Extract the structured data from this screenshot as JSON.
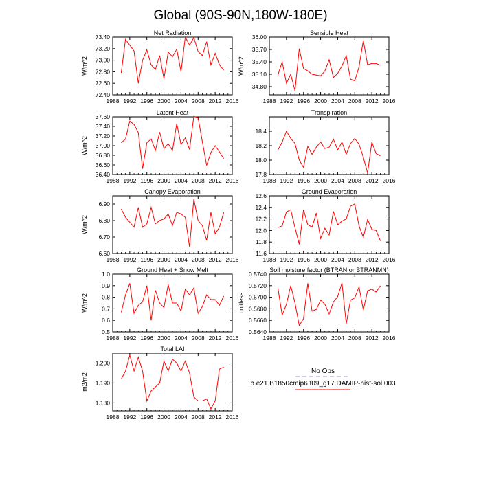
{
  "figure": {
    "title": "Global (90S-90N,180W-180E)",
    "line_color": "#ff0000",
    "legend": {
      "no_obs_label": "No Obs",
      "no_obs_color": "#9999cc",
      "model_label": "b.e21.B1850cmip6.f09_g17.DAMIP-hist-sol.003",
      "model_color": "#ff0000"
    }
  },
  "chart_data": [
    {
      "type": "line",
      "title": "Net Radiation",
      "ylabel": "W/m^2",
      "xlim": [
        1988,
        2016
      ],
      "ylim": [
        72.4,
        73.4
      ],
      "xticks": [
        "1988",
        "1992",
        "1996",
        "2000",
        "2004",
        "2008",
        "2012",
        "2016"
      ],
      "yticks": [
        "72.40",
        "72.60",
        "72.80",
        "73.00",
        "73.20",
        "73.40"
      ],
      "x": [
        1990,
        1991,
        1992,
        1993,
        1994,
        1995,
        1996,
        1997,
        1998,
        1999,
        2000,
        2001,
        2002,
        2003,
        2004,
        2005,
        2006,
        2007,
        2008,
        2009,
        2010,
        2011,
        2012,
        2013,
        2014
      ],
      "y": [
        72.78,
        73.36,
        73.26,
        73.16,
        72.6,
        73.0,
        73.18,
        72.92,
        72.84,
        73.08,
        72.68,
        73.14,
        73.06,
        73.19,
        72.8,
        73.4,
        73.26,
        73.39,
        73.15,
        73.08,
        73.32,
        72.92,
        73.12,
        72.92,
        72.83
      ]
    },
    {
      "type": "line",
      "title": "Sensible Heat",
      "ylabel": "W/m^2",
      "xlim": [
        1988,
        2016
      ],
      "ylim": [
        34.6,
        36.0
      ],
      "xticks": [
        "1988",
        "1992",
        "1996",
        "2000",
        "2004",
        "2008",
        "2012",
        "2016"
      ],
      "yticks": [
        "34.80",
        "35.10",
        "35.40",
        "35.70",
        "36.00"
      ],
      "x": [
        1990,
        1991,
        1992,
        1993,
        1994,
        1995,
        1996,
        1997,
        1998,
        1999,
        2000,
        2001,
        2002,
        2003,
        2004,
        2005,
        2006,
        2007,
        2008,
        2009,
        2010,
        2011,
        2012,
        2013,
        2014
      ],
      "y": [
        35.08,
        35.4,
        34.88,
        35.1,
        34.7,
        35.72,
        35.24,
        35.18,
        35.1,
        35.08,
        35.06,
        35.18,
        35.45,
        35.02,
        35.12,
        35.3,
        35.55,
        34.98,
        34.94,
        35.28,
        35.92,
        35.33,
        35.36,
        35.36,
        35.32
      ]
    },
    {
      "type": "line",
      "title": "Latent Heat",
      "ylabel": "W/m^2",
      "xlim": [
        1988,
        2016
      ],
      "ylim": [
        36.4,
        37.6
      ],
      "xticks": [
        "1988",
        "1992",
        "1996",
        "2000",
        "2004",
        "2008",
        "2012",
        "2016"
      ],
      "yticks": [
        "36.40",
        "36.60",
        "36.80",
        "37.00",
        "37.20",
        "37.40",
        "37.60"
      ],
      "x": [
        1990,
        1991,
        1992,
        1993,
        1994,
        1995,
        1996,
        1997,
        1998,
        1999,
        2000,
        2001,
        2002,
        2003,
        2004,
        2005,
        2006,
        2007,
        2008,
        2009,
        2010,
        2011,
        2012,
        2013,
        2014
      ],
      "y": [
        37.06,
        37.14,
        37.51,
        37.44,
        37.27,
        36.52,
        37.06,
        37.14,
        36.9,
        37.28,
        36.94,
        37.04,
        36.9,
        37.46,
        37.02,
        37.16,
        36.92,
        37.61,
        37.58,
        37.08,
        36.59,
        36.86,
        37.0,
        36.87,
        36.73
      ]
    },
    {
      "type": "line",
      "title": "Transpiration",
      "ylabel": "",
      "xlim": [
        1988,
        2016
      ],
      "ylim": [
        17.8,
        18.6
      ],
      "xticks": [
        "1988",
        "1992",
        "1996",
        "2000",
        "2004",
        "2008",
        "2012",
        "2016"
      ],
      "yticks": [
        "17.8",
        "18.0",
        "18.2",
        "18.4"
      ],
      "x": [
        1990,
        1991,
        1992,
        1993,
        1994,
        1995,
        1996,
        1997,
        1998,
        1999,
        2000,
        2001,
        2002,
        2003,
        2004,
        2005,
        2006,
        2007,
        2008,
        2009,
        2010,
        2011,
        2012,
        2013,
        2014
      ],
      "y": [
        18.14,
        18.25,
        18.4,
        18.3,
        18.23,
        18.0,
        17.9,
        18.19,
        18.08,
        18.18,
        18.25,
        18.16,
        18.18,
        18.29,
        18.14,
        18.25,
        18.08,
        18.23,
        18.3,
        18.22,
        18.04,
        17.82,
        18.25,
        18.09,
        18.06
      ]
    },
    {
      "type": "line",
      "title": "Canopy Evaporation",
      "ylabel": "W/m^2",
      "xlim": [
        1988,
        2016
      ],
      "ylim": [
        6.6,
        6.95
      ],
      "xticks": [
        "1988",
        "1992",
        "1996",
        "2000",
        "2004",
        "2008",
        "2012",
        "2016"
      ],
      "yticks": [
        "6.60",
        "6.70",
        "6.80",
        "6.90"
      ],
      "x": [
        1990,
        1991,
        1992,
        1993,
        1994,
        1995,
        1996,
        1997,
        1998,
        1999,
        2000,
        2001,
        2002,
        2003,
        2004,
        2005,
        2006,
        2007,
        2008,
        2009,
        2010,
        2011,
        2012,
        2013,
        2014
      ],
      "y": [
        6.87,
        6.82,
        6.79,
        6.76,
        6.88,
        6.76,
        6.78,
        6.88,
        6.78,
        6.8,
        6.81,
        6.84,
        6.77,
        6.85,
        6.84,
        6.82,
        6.64,
        6.93,
        6.8,
        6.77,
        6.68,
        6.85,
        6.72,
        6.76,
        6.85
      ]
    },
    {
      "type": "line",
      "title": "Ground Evaporation",
      "ylabel": "",
      "xlim": [
        1988,
        2016
      ],
      "ylim": [
        11.6,
        12.6
      ],
      "xticks": [
        "1988",
        "1992",
        "1996",
        "2000",
        "2004",
        "2008",
        "2012",
        "2016"
      ],
      "yticks": [
        "11.6",
        "11.8",
        "12.0",
        "12.2",
        "12.4",
        "12.6"
      ],
      "x": [
        1990,
        1991,
        1992,
        1993,
        1994,
        1995,
        1996,
        1997,
        1998,
        1999,
        2000,
        2001,
        2002,
        2003,
        2004,
        2005,
        2006,
        2007,
        2008,
        2009,
        2010,
        2011,
        2012,
        2013,
        2014
      ],
      "y": [
        12.05,
        12.08,
        12.32,
        12.36,
        12.05,
        11.76,
        12.36,
        12.1,
        12.06,
        12.3,
        11.86,
        12.04,
        11.92,
        12.33,
        12.1,
        12.16,
        12.2,
        12.42,
        12.46,
        12.08,
        11.88,
        12.19,
        12.02,
        12.0,
        11.82
      ]
    },
    {
      "type": "line",
      "title": "Ground Heat + Snow Melt",
      "ylabel": "W/m^2",
      "xlim": [
        1988,
        2016
      ],
      "ylim": [
        0.5,
        1.0
      ],
      "xticks": [
        "1988",
        "1992",
        "1996",
        "2000",
        "2004",
        "2008",
        "2012",
        "2016"
      ],
      "yticks": [
        "0.5",
        "0.6",
        "0.7",
        "0.8",
        "0.9",
        "1.0"
      ],
      "x": [
        1990,
        1991,
        1992,
        1993,
        1994,
        1995,
        1996,
        1997,
        1998,
        1999,
        2000,
        2001,
        2002,
        2003,
        2004,
        2005,
        2006,
        2007,
        2008,
        2009,
        2010,
        2011,
        2012,
        2013,
        2014
      ],
      "y": [
        0.67,
        0.82,
        0.92,
        0.66,
        0.73,
        0.76,
        0.9,
        0.6,
        0.86,
        0.75,
        0.71,
        0.91,
        0.75,
        0.75,
        0.68,
        0.87,
        0.82,
        0.88,
        0.66,
        0.72,
        0.82,
        0.78,
        0.78,
        0.73,
        0.81
      ]
    },
    {
      "type": "line",
      "title": "Soil moisture factor (BTRAN or BTRANMN)",
      "ylabel": "unitless",
      "xlim": [
        1988,
        2016
      ],
      "ylim": [
        0.564,
        0.574
      ],
      "xticks": [
        "1988",
        "1992",
        "1996",
        "2000",
        "2004",
        "2008",
        "2012",
        "2016"
      ],
      "yticks": [
        "0.5640",
        "0.5660",
        "0.5680",
        "0.5700",
        "0.5720",
        "0.5740"
      ],
      "x": [
        1990,
        1991,
        1992,
        1993,
        1994,
        1995,
        1996,
        1997,
        1998,
        1999,
        2000,
        2001,
        2002,
        2003,
        2004,
        2005,
        2006,
        2007,
        2008,
        2009,
        2010,
        2011,
        2012,
        2013,
        2014
      ],
      "y": [
        0.5716,
        0.5669,
        0.5688,
        0.572,
        0.569,
        0.5651,
        0.5663,
        0.5724,
        0.5676,
        0.5679,
        0.5695,
        0.5688,
        0.5671,
        0.5692,
        0.5701,
        0.5725,
        0.5654,
        0.5695,
        0.5699,
        0.5718,
        0.5678,
        0.5711,
        0.5714,
        0.5709,
        0.572
      ]
    },
    {
      "type": "line",
      "title": "Total LAI",
      "ylabel": "m2/m2",
      "xlim": [
        1988,
        2016
      ],
      "ylim": [
        1.176,
        1.205
      ],
      "xticks": [
        "1988",
        "1992",
        "1996",
        "2000",
        "2004",
        "2008",
        "2012",
        "2016"
      ],
      "yticks": [
        "1.180",
        "1.190",
        "1.200"
      ],
      "x": [
        1990,
        1991,
        1992,
        1993,
        1994,
        1995,
        1996,
        1997,
        1998,
        1999,
        2000,
        2001,
        2002,
        2003,
        2004,
        2005,
        2006,
        2007,
        2008,
        2009,
        2010,
        2011,
        2012,
        2013,
        2014
      ],
      "y": [
        1.192,
        1.196,
        1.204,
        1.196,
        1.203,
        1.196,
        1.181,
        1.186,
        1.188,
        1.19,
        1.201,
        1.196,
        1.202,
        1.2,
        1.196,
        1.201,
        1.195,
        1.183,
        1.181,
        1.181,
        1.182,
        1.177,
        1.181,
        1.197,
        1.198
      ]
    }
  ]
}
